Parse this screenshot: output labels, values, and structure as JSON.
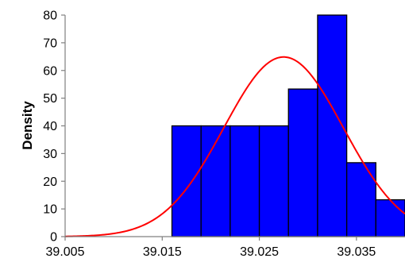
{
  "chart_data": {
    "type": "bar",
    "subtype": "histogram-with-density-curve",
    "ylabel": "Density",
    "xlabel": "",
    "xlim": [
      39.005,
      39.04
    ],
    "ylim": [
      0,
      80
    ],
    "xticks": [
      "39.005",
      "39.015",
      "39.025",
      "39.035"
    ],
    "xtick_values": [
      39.005,
      39.015,
      39.025,
      39.035
    ],
    "yticks": [
      "0",
      "10",
      "20",
      "30",
      "40",
      "50",
      "60",
      "70",
      "80"
    ],
    "ytick_values": [
      0,
      10,
      20,
      30,
      40,
      50,
      60,
      70,
      80
    ],
    "grid": false,
    "legend": "none",
    "bins": [
      {
        "start": 39.016,
        "end": 39.019,
        "value": 40
      },
      {
        "start": 39.019,
        "end": 39.022,
        "value": 40
      },
      {
        "start": 39.022,
        "end": 39.025,
        "value": 40
      },
      {
        "start": 39.025,
        "end": 39.028,
        "value": 40
      },
      {
        "start": 39.028,
        "end": 39.031,
        "value": 53.3
      },
      {
        "start": 39.031,
        "end": 39.034,
        "value": 80
      },
      {
        "start": 39.034,
        "end": 39.037,
        "value": 26.7
      },
      {
        "start": 39.037,
        "end": 39.04,
        "value": 13.3
      }
    ],
    "curve": {
      "type": "normal",
      "mean": 39.0275,
      "sd": 0.00615,
      "x_start": 39.005,
      "x_end": 39.04
    },
    "colors": {
      "bar_fill": "#0000ff",
      "bar_stroke": "#000000",
      "curve": "#ff0000",
      "axis": "#808080"
    }
  }
}
